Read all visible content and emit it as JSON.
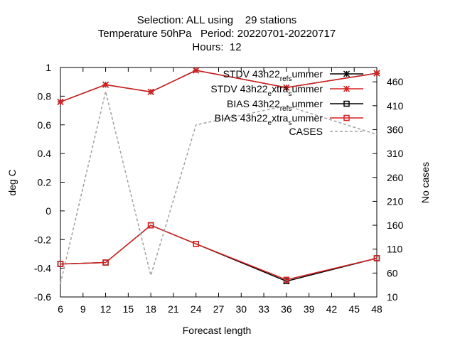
{
  "chart_data": {
    "type": "line",
    "title_lines": [
      "Selection: ALL using    29 stations",
      "Temperature 50hPa   Period: 20220701-20220717",
      "Hours:  12"
    ],
    "xlabel": "Forecast length",
    "ylabel": "deg C",
    "y2label": "No cases",
    "xlim": [
      6,
      48
    ],
    "ylim": [
      -0.6,
      1.0
    ],
    "y2lim": [
      10,
      490
    ],
    "xticks": [
      6,
      9,
      12,
      15,
      18,
      21,
      24,
      27,
      30,
      33,
      36,
      39,
      42,
      45,
      48
    ],
    "yticks": [
      -0.6,
      -0.4,
      -0.2,
      0,
      0.2,
      0.4,
      0.6,
      0.8,
      1
    ],
    "y2ticks": [
      10,
      60,
      110,
      160,
      210,
      260,
      310,
      360,
      410,
      460
    ],
    "x": [
      6,
      12,
      18,
      24,
      36,
      48
    ],
    "legend_position": "top-right",
    "series": [
      {
        "name": "STDV 43h22_ref_summer",
        "legend_main": "STDV 43h22",
        "legend_sub": "ref",
        "legend_sub2": "s",
        "legend_tail": "ummer",
        "axis": "y",
        "color": "#000000",
        "marker": "star",
        "values": [
          0.76,
          0.88,
          0.83,
          0.98,
          0.86,
          0.96
        ]
      },
      {
        "name": "STDV 43h22_extra_summer",
        "legend_main": "STDV 43h22",
        "legend_sub": "e",
        "legend_mid": "xtra",
        "legend_sub2": "s",
        "legend_tail": "ummer",
        "axis": "y",
        "color": "#d62020",
        "marker": "star",
        "values": [
          0.76,
          0.88,
          0.83,
          0.98,
          0.86,
          0.96
        ]
      },
      {
        "name": "BIAS 43h22_ref_summer",
        "legend_main": "BIAS 43h22",
        "legend_sub": "ref",
        "legend_sub2": "s",
        "legend_tail": "ummer",
        "axis": "y",
        "color": "#000000",
        "marker": "square",
        "values": [
          -0.37,
          -0.36,
          -0.1,
          -0.23,
          -0.49,
          -0.33
        ]
      },
      {
        "name": "BIAS 43h22_extra_summer",
        "legend_main": "BIAS 43h22",
        "legend_sub": "e",
        "legend_mid": "xtra",
        "legend_sub2": "s",
        "legend_tail": "ummer",
        "axis": "y",
        "color": "#d62020",
        "marker": "square",
        "values": [
          -0.37,
          -0.36,
          -0.1,
          -0.23,
          -0.48,
          -0.33
        ]
      },
      {
        "name": "CASES",
        "legend_main": "CASES",
        "axis": "y2",
        "color": "#a0a0a0",
        "marker": "none",
        "dashed": true,
        "values": [
          38,
          440,
          55,
          370,
          410,
          350
        ]
      }
    ]
  }
}
